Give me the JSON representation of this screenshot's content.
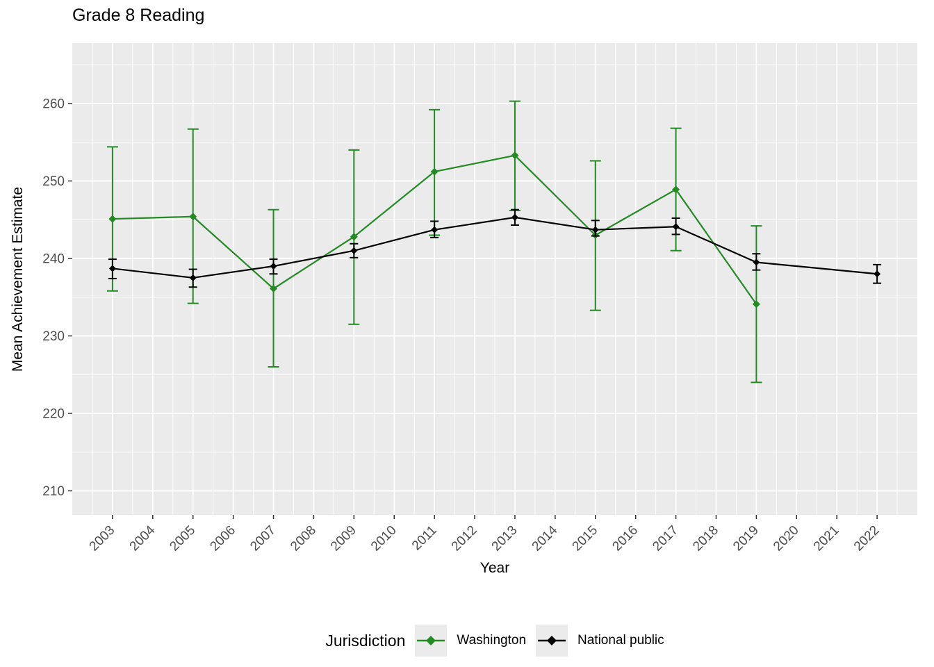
{
  "title": "Grade 8 Reading",
  "colors": {
    "washington": "#228B22",
    "national_public": "#000000",
    "panel_background": "#EBEBEB",
    "gridline": "#FFFFFF",
    "tick_mark": "#333333",
    "tick_label_text": "#4D4D4D",
    "title_text": "#000000",
    "legend_key_background": "#EBEBEB"
  },
  "chart_data": {
    "type": "line",
    "title": "Grade 8 Reading",
    "xlabel": "Year",
    "ylabel": "Mean Achievement Estimate",
    "legend_title": "Jurisdiction",
    "legend_position": "bottom",
    "grid": true,
    "error_bars": true,
    "xlim": [
      2002,
      2023
    ],
    "ylim": [
      206.9,
      267.8
    ],
    "x_ticks": [
      2003,
      2004,
      2005,
      2006,
      2007,
      2008,
      2009,
      2010,
      2011,
      2012,
      2013,
      2014,
      2015,
      2016,
      2017,
      2018,
      2019,
      2020,
      2021,
      2022
    ],
    "y_ticks": [
      210,
      220,
      230,
      240,
      250,
      260
    ],
    "series": [
      {
        "name": "Washington",
        "color": "#228B22",
        "point_shape": "diamond",
        "point_size": 5.5,
        "errorbar_cap": 16,
        "points": [
          {
            "x": 2003,
            "y": 245.1,
            "lo": 235.8,
            "hi": 254.4
          },
          {
            "x": 2005,
            "y": 245.4,
            "lo": 234.2,
            "hi": 256.7
          },
          {
            "x": 2007,
            "y": 236.1,
            "lo": 226.0,
            "hi": 246.3
          },
          {
            "x": 2009,
            "y": 242.8,
            "lo": 231.5,
            "hi": 254.0
          },
          {
            "x": 2011,
            "y": 251.2,
            "lo": 243.0,
            "hi": 259.2
          },
          {
            "x": 2013,
            "y": 253.3,
            "lo": 246.2,
            "hi": 260.3
          },
          {
            "x": 2015,
            "y": 243.0,
            "lo": 233.3,
            "hi": 252.6
          },
          {
            "x": 2017,
            "y": 248.9,
            "lo": 241.0,
            "hi": 256.8
          },
          {
            "x": 2019,
            "y": 234.1,
            "lo": 224.0,
            "hi": 244.2
          }
        ]
      },
      {
        "name": "National public",
        "color": "#000000",
        "point_shape": "diamond",
        "point_size": 5,
        "errorbar_cap": 12,
        "points": [
          {
            "x": 2003,
            "y": 238.7,
            "lo": 237.4,
            "hi": 239.9
          },
          {
            "x": 2005,
            "y": 237.5,
            "lo": 236.3,
            "hi": 238.6
          },
          {
            "x": 2007,
            "y": 239.0,
            "lo": 238.0,
            "hi": 239.9
          },
          {
            "x": 2009,
            "y": 241.0,
            "lo": 240.1,
            "hi": 241.9
          },
          {
            "x": 2011,
            "y": 243.7,
            "lo": 242.7,
            "hi": 244.8
          },
          {
            "x": 2013,
            "y": 245.3,
            "lo": 244.3,
            "hi": 246.3
          },
          {
            "x": 2015,
            "y": 243.7,
            "lo": 242.9,
            "hi": 244.9
          },
          {
            "x": 2017,
            "y": 244.1,
            "lo": 243.1,
            "hi": 245.2
          },
          {
            "x": 2019,
            "y": 239.5,
            "lo": 238.5,
            "hi": 240.6
          },
          {
            "x": 2022,
            "y": 238.0,
            "lo": 236.8,
            "hi": 239.2
          }
        ]
      }
    ]
  }
}
